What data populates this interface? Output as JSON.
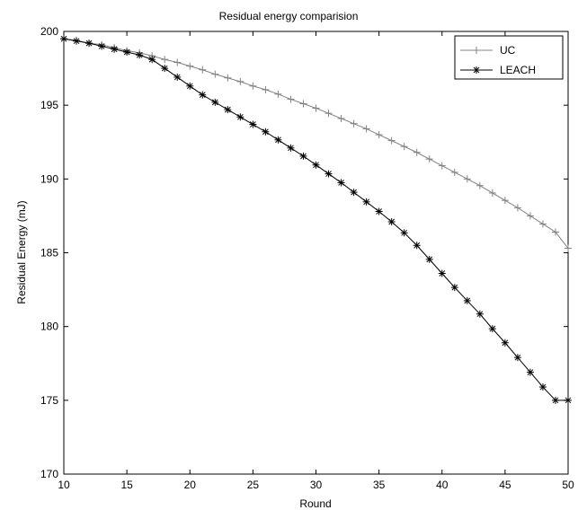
{
  "chart_data": {
    "type": "line",
    "title": "Residual energy comparision",
    "xlabel": "Round",
    "ylabel": "Residual Energy (mJ)",
    "xlim": [
      10,
      50
    ],
    "ylim": [
      170,
      200
    ],
    "xticks": [
      10,
      15,
      20,
      25,
      30,
      35,
      40,
      45,
      50
    ],
    "yticks": [
      170,
      175,
      180,
      185,
      190,
      195,
      200
    ],
    "grid": false,
    "legend_position": "top-right",
    "x": [
      10,
      11,
      12,
      13,
      14,
      15,
      16,
      17,
      18,
      19,
      20,
      21,
      22,
      23,
      24,
      25,
      26,
      27,
      28,
      29,
      30,
      31,
      32,
      33,
      34,
      35,
      36,
      37,
      38,
      39,
      40,
      41,
      42,
      43,
      44,
      45,
      46,
      47,
      48,
      49,
      50
    ],
    "series": [
      {
        "name": "UC",
        "color": "#808080",
        "marker": "plus",
        "values": [
          199.5,
          199.4,
          199.2,
          199.1,
          198.9,
          198.7,
          198.55,
          198.35,
          198.1,
          197.9,
          197.65,
          197.4,
          197.1,
          196.85,
          196.6,
          196.3,
          196.05,
          195.75,
          195.4,
          195.1,
          194.8,
          194.45,
          194.1,
          193.75,
          193.4,
          193.0,
          192.6,
          192.2,
          191.8,
          191.35,
          190.9,
          190.45,
          190.0,
          189.55,
          189.05,
          188.55,
          188.05,
          187.5,
          186.95,
          186.4,
          185.3
        ]
      },
      {
        "name": "LEACH",
        "color": "#000000",
        "marker": "asterisk",
        "values": [
          199.5,
          199.35,
          199.2,
          199.0,
          198.8,
          198.6,
          198.4,
          198.1,
          197.5,
          196.9,
          196.3,
          195.7,
          195.2,
          194.7,
          194.2,
          193.7,
          193.2,
          192.65,
          192.1,
          191.55,
          190.95,
          190.35,
          189.75,
          189.1,
          188.45,
          187.8,
          187.1,
          186.35,
          185.5,
          184.55,
          183.6,
          182.65,
          181.75,
          180.85,
          179.85,
          178.9,
          177.9,
          176.9,
          175.9,
          175.0,
          175.0
        ]
      }
    ]
  }
}
